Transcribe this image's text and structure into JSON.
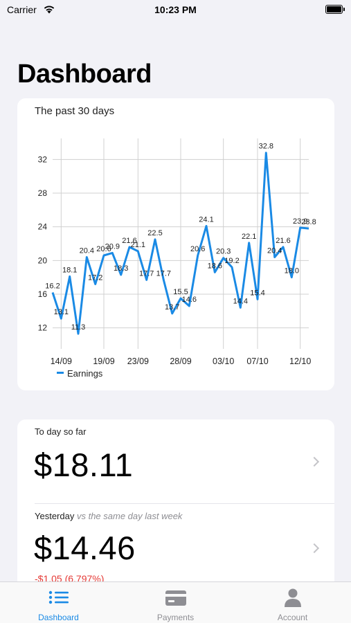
{
  "status_bar": {
    "carrier": "Carrier",
    "time": "10:23 PM"
  },
  "page_title": "Dashboard",
  "chart_card": {
    "caption": "The past 30 days"
  },
  "chart_data": {
    "type": "line",
    "x": [
      "13/09",
      "14/09",
      "15/09",
      "16/09",
      "17/09",
      "18/09",
      "19/09",
      "20/09",
      "21/09",
      "22/09",
      "23/09",
      "24/09",
      "25/09",
      "26/09",
      "27/09",
      "28/09",
      "29/09",
      "30/09",
      "01/10",
      "02/10",
      "03/10",
      "04/10",
      "05/10",
      "06/10",
      "07/10",
      "08/10",
      "09/10",
      "10/10",
      "11/10",
      "12/10",
      "13/10"
    ],
    "series": [
      {
        "name": "Earnings",
        "values": [
          16.2,
          13.1,
          18.1,
          11.3,
          20.4,
          17.2,
          20.6,
          20.9,
          18.3,
          21.6,
          21.1,
          17.7,
          22.5,
          17.7,
          13.7,
          15.5,
          14.6,
          20.6,
          24.1,
          18.6,
          20.3,
          19.2,
          14.4,
          22.1,
          15.4,
          32.8,
          20.4,
          21.6,
          18.0,
          23.9,
          23.8
        ]
      }
    ],
    "tick_labels_x": [
      "14/09",
      "19/09",
      "23/09",
      "28/09",
      "03/10",
      "07/10",
      "12/10"
    ],
    "tick_labels_y": [
      "12",
      "16",
      "20",
      "24",
      "28",
      "32"
    ],
    "ylim": [
      9.5,
      34.5
    ],
    "grid": true,
    "legend": "bottom-left",
    "line_color": "#1a8ae5"
  },
  "stats": {
    "today_label": "To day so far",
    "today_value": "$18.11",
    "yesterday_label": "Yesterday",
    "yesterday_sub": "vs the same day last week",
    "yesterday_value": "$14.46",
    "yesterday_change": "-$1.05 (6.797%)"
  },
  "tab_bar": {
    "items": [
      {
        "label": "Dashboard",
        "icon": "list-icon",
        "active": true
      },
      {
        "label": "Payments",
        "icon": "credit-card-icon",
        "active": false
      },
      {
        "label": "Account",
        "icon": "person-icon",
        "active": false
      }
    ],
    "active_color": "#1a8ae5",
    "inactive_color": "#8e8e93"
  }
}
